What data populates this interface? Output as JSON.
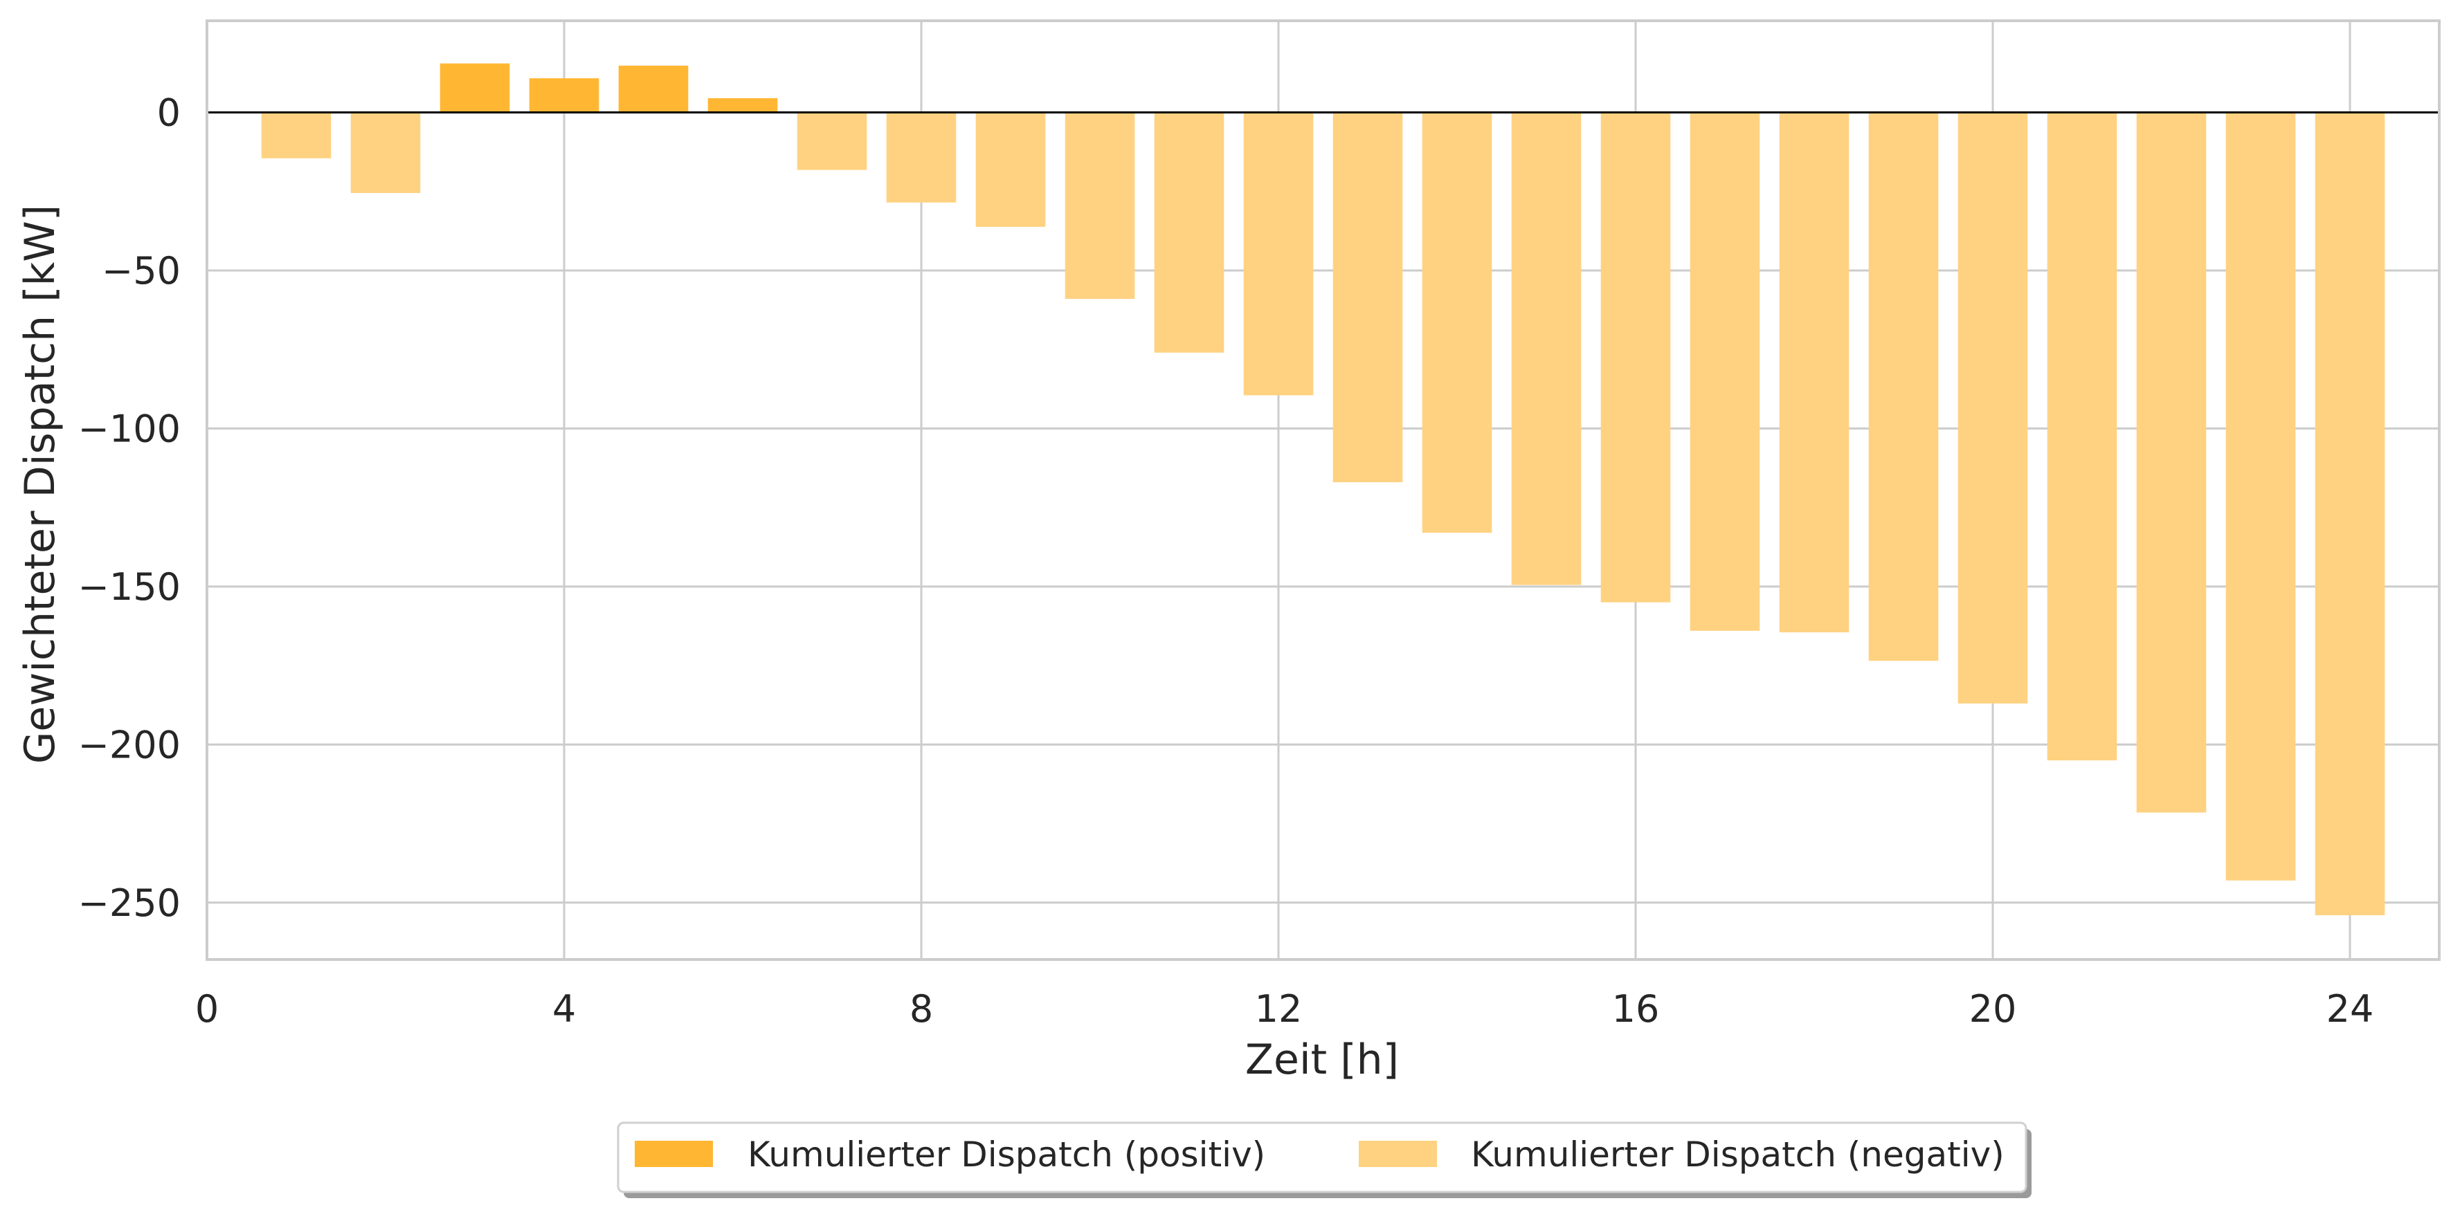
{
  "chart_data": {
    "type": "bar",
    "title": "",
    "xlabel": "Zeit [h]",
    "ylabel": "Gewichteter Dispatch [kW]",
    "xlim": [
      0,
      25
    ],
    "ylim": [
      -268,
      29
    ],
    "xticks": [
      0,
      4,
      8,
      12,
      16,
      20,
      24
    ],
    "yticks": [
      0,
      -50,
      -100,
      -150,
      -200,
      -250
    ],
    "ytick_labels": [
      "0",
      "−50",
      "−100",
      "−150",
      "−200",
      "−250"
    ],
    "grid": true,
    "legend_placement": "bottom-center-outside",
    "series": [
      {
        "name": "Kumulierter Dispatch (positiv)",
        "color": "#ffb733",
        "x": [
          3,
          4,
          5,
          6
        ],
        "values": [
          15.5,
          10.8,
          14.8,
          4.5
        ]
      },
      {
        "name": "Kumulierter Dispatch (negativ)",
        "color": "#ffd281",
        "x": [
          1,
          2,
          7,
          8,
          9,
          10,
          11,
          12,
          13,
          14,
          15,
          16,
          17,
          18,
          19,
          20,
          21,
          22,
          23,
          24
        ],
        "values": [
          -14.5,
          -25.5,
          -18.2,
          -28.5,
          -36.2,
          -59,
          -76,
          -89.5,
          -117,
          -133,
          -149.5,
          -155,
          -164,
          -164.5,
          -173.5,
          -187,
          -205,
          -221.5,
          -243,
          -254
        ]
      }
    ]
  }
}
